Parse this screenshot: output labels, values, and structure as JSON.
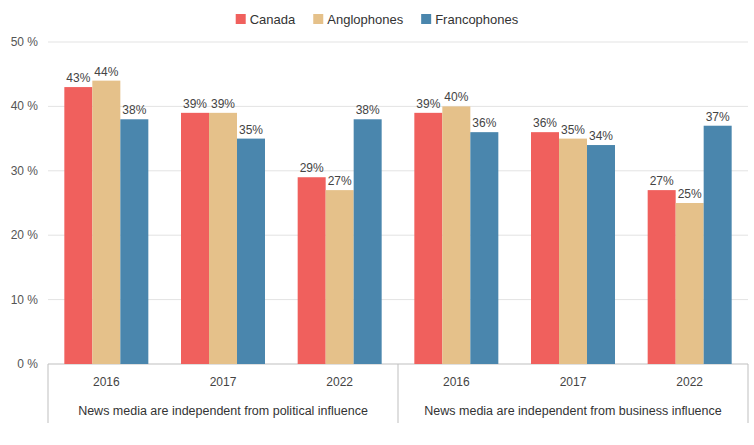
{
  "chart_data": {
    "type": "bar",
    "categories": [
      "2016",
      "2017",
      "2022",
      "2016",
      "2017",
      "2022"
    ],
    "group_labels": [
      "News media are independent from political influence",
      "News media are independent from business influence"
    ],
    "series": [
      {
        "name": "Canada",
        "color": "#f0605d",
        "values": [
          43,
          39,
          29,
          39,
          36,
          27
        ],
        "value_labels": [
          "43%",
          "39%",
          "29%",
          "39%",
          "36%",
          "27%"
        ]
      },
      {
        "name": "Anglophones",
        "color": "#e5c18a",
        "values": [
          44,
          39,
          27,
          40,
          35,
          25
        ],
        "value_labels": [
          "44%",
          "39%",
          "27%",
          "40%",
          "35%",
          "25%"
        ]
      },
      {
        "name": "Francophones",
        "color": "#4a86ad",
        "values": [
          38,
          35,
          38,
          36,
          34,
          37
        ],
        "value_labels": [
          "38%",
          "35%",
          "38%",
          "36%",
          "34%",
          "37%"
        ]
      }
    ],
    "ylim": [
      0,
      50
    ],
    "yticks": [
      {
        "value": 0,
        "label": "0 %"
      },
      {
        "value": 10,
        "label": "10 %"
      },
      {
        "value": 20,
        "label": "20 %"
      },
      {
        "value": 30,
        "label": "30 %"
      },
      {
        "value": 40,
        "label": "40 %"
      },
      {
        "value": 50,
        "label": "50 %"
      }
    ],
    "grid": true,
    "legend": "top",
    "data_labels": true
  }
}
